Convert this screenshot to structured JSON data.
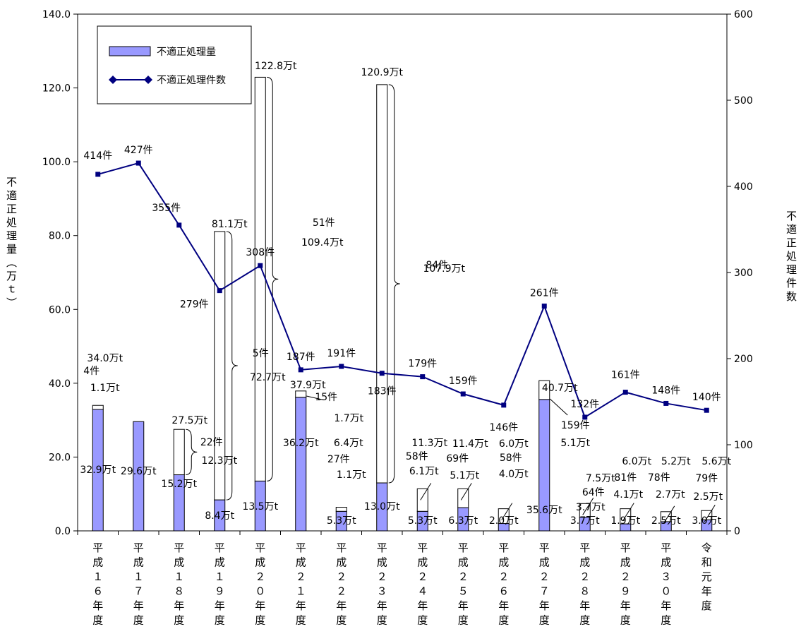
{
  "chart_data": {
    "type": "bar+line",
    "categories": [
      "平成16年度",
      "平成17年度",
      "平成18年度",
      "平成19年度",
      "平成20年度",
      "平成21年度",
      "平成22年度",
      "平成23年度",
      "平成24年度",
      "平成25年度",
      "平成26年度",
      "平成27年度",
      "平成28年度",
      "平成29年度",
      "平成30年度",
      "令和元年度"
    ],
    "category_labels": [
      "平成１６年度",
      "平成１７年度",
      "平成１８年度",
      "平成１９年度",
      "平成２０年度",
      "平成２１年度",
      "平成２２年度",
      "平成２３年度",
      "平成２４年度",
      "平成２５年度",
      "平成２６年度",
      "平成２７年度",
      "平成２８年度",
      "平成２９年度",
      "平成３０年度",
      "令和元年度"
    ],
    "y_left": {
      "label": "不適正処理量（万ｔ）",
      "lim": [
        0,
        140
      ],
      "ticks": [
        "0.0",
        "20.0",
        "40.0",
        "60.0",
        "80.0",
        "100.0",
        "120.0",
        "140.0"
      ]
    },
    "y_right": {
      "label": "不適正処理件数",
      "lim": [
        0,
        600
      ],
      "ticks": [
        "0",
        "100",
        "200",
        "300",
        "400",
        "500",
        "600"
      ]
    },
    "legend": {
      "position": "top-left",
      "items": [
        "不適正処理量",
        "不適正処理件数"
      ]
    },
    "series": [
      {
        "name": "不適正処理量",
        "kind": "bar",
        "color": "#9999ff",
        "values": [
          32.9,
          29.6,
          15.2,
          8.4,
          13.5,
          36.2,
          5.3,
          13.0,
          5.3,
          6.3,
          2.0,
          35.6,
          3.7,
          1.9,
          2.5,
          3.0
        ]
      },
      {
        "name": "",
        "kind": "bar-stack-outline",
        "color": "#ffffff",
        "values": [
          1.1,
          0,
          12.3,
          72.7,
          109.4,
          1.7,
          1.1,
          107.9,
          6.1,
          5.1,
          4.0,
          5.1,
          3.7,
          4.1,
          2.7,
          2.5
        ]
      },
      {
        "name": "不適正処理件数",
        "kind": "line",
        "color": "#000080",
        "values": [
          414,
          427,
          355,
          279,
          308,
          187,
          191,
          183,
          179,
          159,
          146,
          261,
          132,
          161,
          148,
          140
        ]
      }
    ],
    "bar_labels": [
      "32.9万t",
      "29.6万t",
      "15.2万t",
      "8.4万t",
      "13.5万t",
      "36.2万t",
      "5.3万t",
      "13.0万t",
      "5.3万t",
      "6.3万t",
      "2.0万t",
      "35.6万t",
      "3.7万t",
      "1.9万t",
      "2.5万t",
      "3.0万t"
    ],
    "line_labels": [
      "414件",
      "427件",
      "355件",
      "279件",
      "308件",
      "187件",
      "191件",
      "183件",
      "179件",
      "159件",
      "146件",
      "261件",
      "132件",
      "161件",
      "148件",
      "140件"
    ],
    "annotations": [
      {
        "index": 0,
        "total": "34.0万t",
        "count": "4件",
        "amount": "1.1万t"
      },
      {
        "index": 2,
        "total": "27.5万t",
        "count": "22件",
        "amount": "12.3万t"
      },
      {
        "index": 3,
        "total": "81.1万t",
        "count": "5件",
        "amount": "72.7万t"
      },
      {
        "index": 4,
        "total": "122.8万t",
        "count": "51件",
        "amount": "109.4万t"
      },
      {
        "index": 5,
        "total": "37.9万t",
        "count": "15件",
        "amount": "1.7万t"
      },
      {
        "index": 6,
        "total": "6.4万t",
        "count": "27件",
        "amount": "1.1万t"
      },
      {
        "index": 7,
        "total": "120.9万t",
        "count": "84件",
        "amount": "107.9万t"
      },
      {
        "index": 8,
        "total": "11.3万t",
        "count": "58件",
        "amount": "6.1万t"
      },
      {
        "index": 9,
        "total": "11.4万t",
        "count": "69件",
        "amount": "5.1万t"
      },
      {
        "index": 10,
        "total": "6.0万t",
        "count": "58件",
        "amount": "4.0万t"
      },
      {
        "index": 11,
        "total": "40.7万t",
        "count": "159件",
        "amount": "5.1万t"
      },
      {
        "index": 12,
        "total": "7.5万t",
        "count": "64件",
        "amount": "3.7万t"
      },
      {
        "index": 13,
        "total": "6.0万t",
        "count": "81件",
        "amount": "4.1万t"
      },
      {
        "index": 14,
        "total": "5.2万t",
        "count": "78件",
        "amount": "2.7万t"
      },
      {
        "index": 15,
        "total": "5.6万t",
        "count": "79件",
        "amount": "2.5万t"
      }
    ]
  }
}
